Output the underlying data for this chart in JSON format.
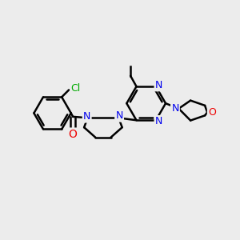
{
  "bg_color": "#ececec",
  "bond_color": "#000000",
  "bond_width": 1.8,
  "N_color": "#0000ee",
  "O_color": "#ee0000",
  "Cl_color": "#00aa00",
  "C_color": "#000000",
  "figsize": [
    3.0,
    3.0
  ],
  "dpi": 100,
  "xlim": [
    -4.5,
    5.5
  ],
  "ylim": [
    -3.5,
    3.5
  ]
}
